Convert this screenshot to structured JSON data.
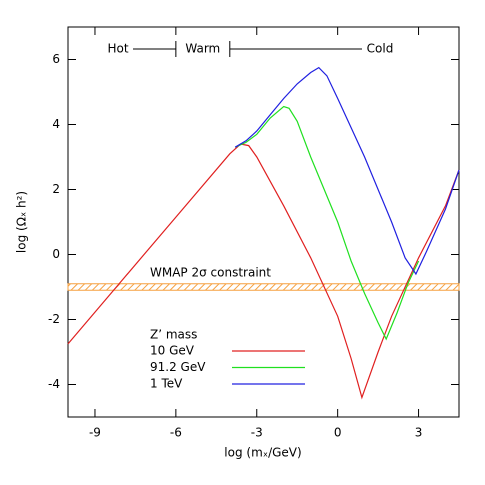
{
  "chart_data": {
    "type": "line",
    "x_label": "log (mₓ/GeV)",
    "y_label": "log (Ωₓ h²)",
    "xlim": [
      -10,
      4.5
    ],
    "ylim": [
      -5,
      7
    ],
    "xticks": [
      -9,
      -6,
      -3,
      0,
      3
    ],
    "yticks": [
      -4,
      -2,
      0,
      2,
      4,
      6
    ],
    "regions": [
      "Hot",
      "Warm",
      "Cold"
    ],
    "region_boundaries": [
      -6,
      -4
    ],
    "band": {
      "label": "WMAP 2σ constraint",
      "range": [
        -1.1,
        -0.9
      ],
      "color": "#f5a040"
    },
    "legend_title": "Z’ mass",
    "series": [
      {
        "name": "10 GeV",
        "color": "#e02020",
        "x": [
          -10,
          -8,
          -6,
          -4,
          -3.6,
          -3.3,
          -3,
          -2,
          -1,
          0,
          0.5,
          0.9,
          1.5,
          2,
          3,
          4,
          4.5
        ],
        "values": [
          -2.75,
          -0.8,
          1.15,
          3.1,
          3.4,
          3.35,
          3.0,
          1.5,
          -0.1,
          -1.9,
          -3.2,
          -4.4,
          -3.0,
          -1.9,
          -0.1,
          1.5,
          2.6
        ]
      },
      {
        "name": "91.2 GeV",
        "color": "#20e020",
        "x": [
          -3.8,
          -3.4,
          -3,
          -2.5,
          -2,
          -1.8,
          -1.5,
          -1,
          0,
          0.5,
          1,
          1.5,
          1.8,
          2.2,
          2.6,
          3
        ],
        "values": [
          3.3,
          3.45,
          3.7,
          4.2,
          4.55,
          4.5,
          4.1,
          3.0,
          1.0,
          -0.2,
          -1.2,
          -2.1,
          -2.6,
          -1.8,
          -0.9,
          -0.2
        ]
      },
      {
        "name": "1 TeV",
        "color": "#2020e0",
        "x": [
          -3.8,
          -3.4,
          -3,
          -2.5,
          -2,
          -1.5,
          -1,
          -0.7,
          -0.4,
          0,
          1,
          2,
          2.5,
          2.9,
          3.3,
          4,
          4.5
        ],
        "values": [
          3.3,
          3.5,
          3.8,
          4.3,
          4.8,
          5.25,
          5.6,
          5.75,
          5.5,
          4.8,
          3.0,
          1.0,
          -0.1,
          -0.6,
          0.1,
          1.4,
          2.6
        ]
      }
    ]
  }
}
